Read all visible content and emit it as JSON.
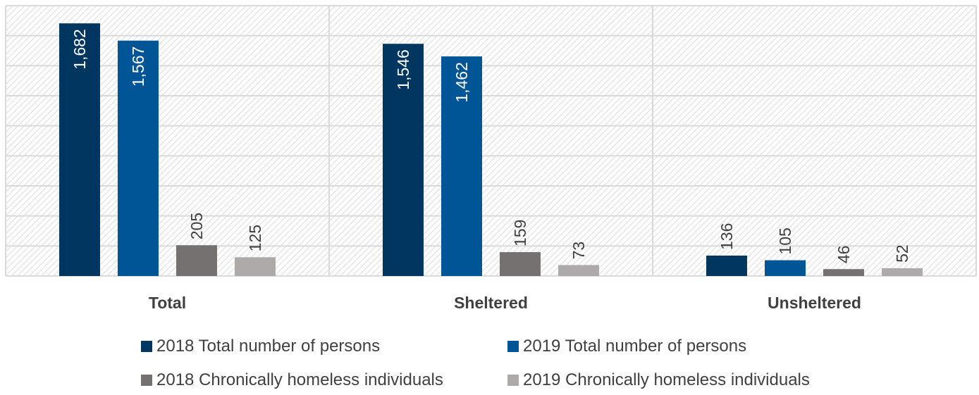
{
  "chart_data": {
    "type": "bar",
    "categories": [
      "Total",
      "Sheltered",
      "Unsheltered"
    ],
    "series": [
      {
        "name": "2018 Total number of persons",
        "values": [
          1682,
          1546,
          136
        ],
        "color": "#003660"
      },
      {
        "name": "2019 Total number of persons",
        "values": [
          1567,
          1462,
          105
        ],
        "color": "#005596"
      },
      {
        "name": "2018 Chronically homeless individuals",
        "values": [
          205,
          159,
          46
        ],
        "color": "#767171"
      },
      {
        "name": "2019 Chronically homeless individuals",
        "values": [
          125,
          73,
          52
        ],
        "color": "#aeaaaa"
      }
    ],
    "value_labels": [
      [
        "1,682",
        "1,546",
        "136"
      ],
      [
        "1,567",
        "1,462",
        "105"
      ],
      [
        "205",
        "159",
        "46"
      ],
      [
        "125",
        "73",
        "52"
      ]
    ],
    "ylim": [
      0,
      1800
    ],
    "grid": true,
    "legend_position": "bottom",
    "title": "",
    "xlabel": "",
    "ylabel": ""
  }
}
